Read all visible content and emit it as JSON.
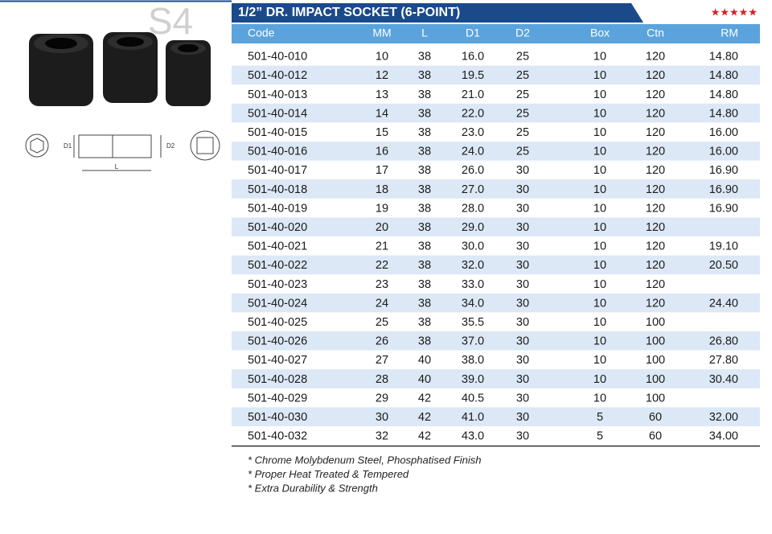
{
  "watermark": "S4",
  "diagram": {
    "d1": "D1",
    "d2": "D2",
    "l": "L"
  },
  "header": {
    "title": "1/2” DR. IMPACT SOCKET (6-POINT)",
    "rating": "★★★★★"
  },
  "table": {
    "columns": [
      "Code",
      "MM",
      "L",
      "D1",
      "D2",
      "Box",
      "Ctn",
      "RM"
    ],
    "rows": [
      [
        "501-40-010",
        "10",
        "38",
        "16.0",
        "25",
        "10",
        "120",
        "14.80"
      ],
      [
        "501-40-012",
        "12",
        "38",
        "19.5",
        "25",
        "10",
        "120",
        "14.80"
      ],
      [
        "501-40-013",
        "13",
        "38",
        "21.0",
        "25",
        "10",
        "120",
        "14.80"
      ],
      [
        "501-40-014",
        "14",
        "38",
        "22.0",
        "25",
        "10",
        "120",
        "14.80"
      ],
      [
        "501-40-015",
        "15",
        "38",
        "23.0",
        "25",
        "10",
        "120",
        "16.00"
      ],
      [
        "501-40-016",
        "16",
        "38",
        "24.0",
        "25",
        "10",
        "120",
        "16.00"
      ],
      [
        "501-40-017",
        "17",
        "38",
        "26.0",
        "30",
        "10",
        "120",
        "16.90"
      ],
      [
        "501-40-018",
        "18",
        "38",
        "27.0",
        "30",
        "10",
        "120",
        "16.90"
      ],
      [
        "501-40-019",
        "19",
        "38",
        "28.0",
        "30",
        "10",
        "120",
        "16.90"
      ],
      [
        "501-40-020",
        "20",
        "38",
        "29.0",
        "30",
        "10",
        "120",
        null
      ],
      [
        "501-40-021",
        "21",
        "38",
        "30.0",
        "30",
        "10",
        "120",
        "19.10"
      ],
      [
        "501-40-022",
        "22",
        "38",
        "32.0",
        "30",
        "10",
        "120",
        "20.50"
      ],
      [
        "501-40-023",
        "23",
        "38",
        "33.0",
        "30",
        "10",
        "120",
        null
      ],
      [
        "501-40-024",
        "24",
        "38",
        "34.0",
        "30",
        "10",
        "120",
        "24.40"
      ],
      [
        "501-40-025",
        "25",
        "38",
        "35.5",
        "30",
        "10",
        "100",
        null
      ],
      [
        "501-40-026",
        "26",
        "38",
        "37.0",
        "30",
        "10",
        "100",
        "26.80"
      ],
      [
        "501-40-027",
        "27",
        "40",
        "38.0",
        "30",
        "10",
        "100",
        "27.80"
      ],
      [
        "501-40-028",
        "28",
        "40",
        "39.0",
        "30",
        "10",
        "100",
        "30.40"
      ],
      [
        "501-40-029",
        "29",
        "42",
        "40.5",
        "30",
        "10",
        "100",
        null
      ],
      [
        "501-40-030",
        "30",
        "42",
        "41.0",
        "30",
        "5",
        "60",
        "32.00"
      ],
      [
        "501-40-032",
        "32",
        "42",
        "43.0",
        "30",
        "5",
        "60",
        "34.00"
      ]
    ]
  },
  "notes": [
    "* Chrome Molybdenum Steel, Phosphatised Finish",
    "* Proper Heat Treated & Tempered",
    "* Extra Durability & Strength"
  ]
}
